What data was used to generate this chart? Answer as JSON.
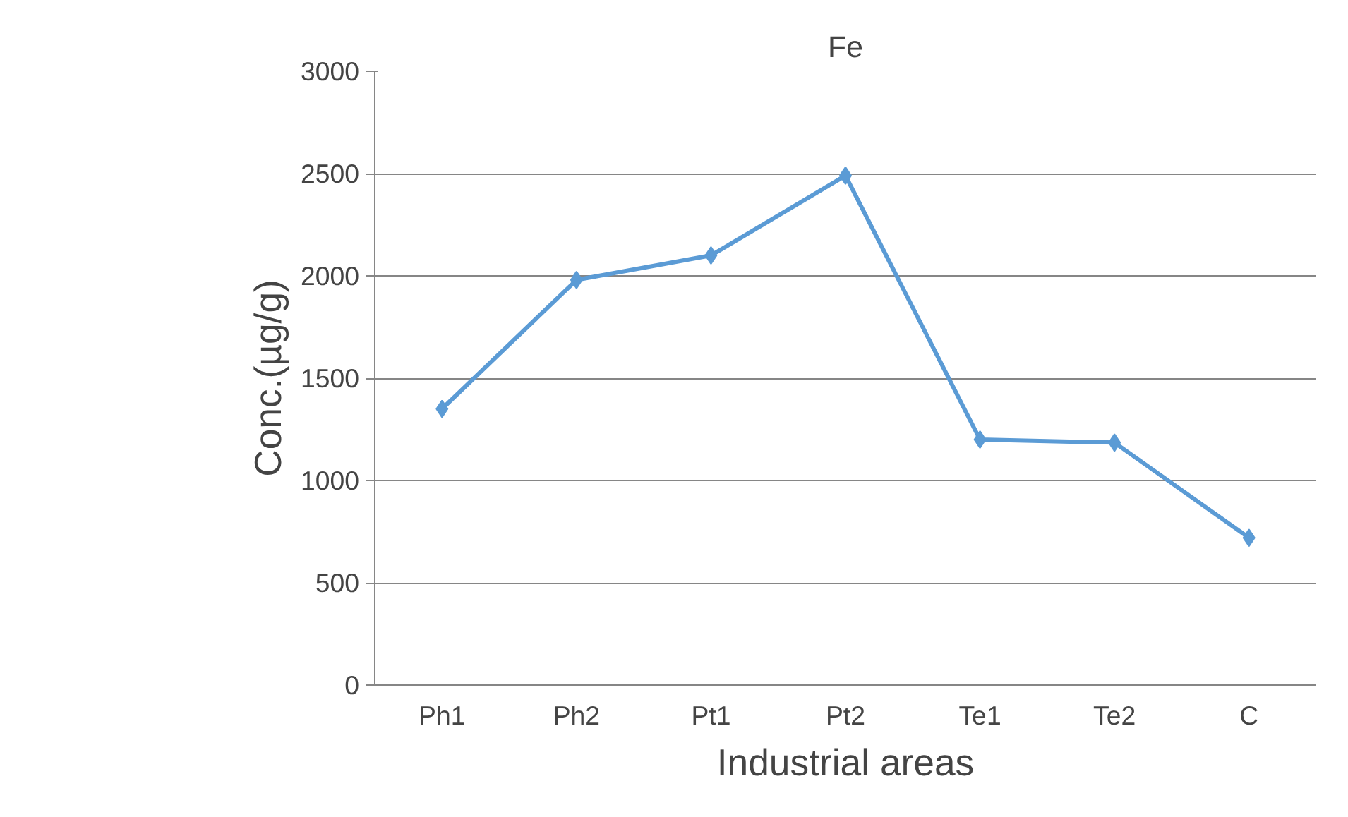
{
  "chart_data": {
    "type": "line",
    "title": "Fe",
    "xlabel": "Industrial areas",
    "ylabel": "Conc.(µg/g)",
    "categories": [
      "Ph1",
      "Ph2",
      "Pt1",
      "Pt2",
      "Te1",
      "Te2",
      "C"
    ],
    "series": [
      {
        "color": "#5b9bd5",
        "values": [
          1350,
          1980,
          2100,
          2490,
          1200,
          1185,
          720
        ]
      }
    ],
    "ylim": [
      0,
      3000
    ],
    "yticks": [
      0,
      500,
      1000,
      1500,
      2000,
      2500,
      3000
    ],
    "grid": "y",
    "marker": "diamond",
    "line_style": "solid"
  }
}
